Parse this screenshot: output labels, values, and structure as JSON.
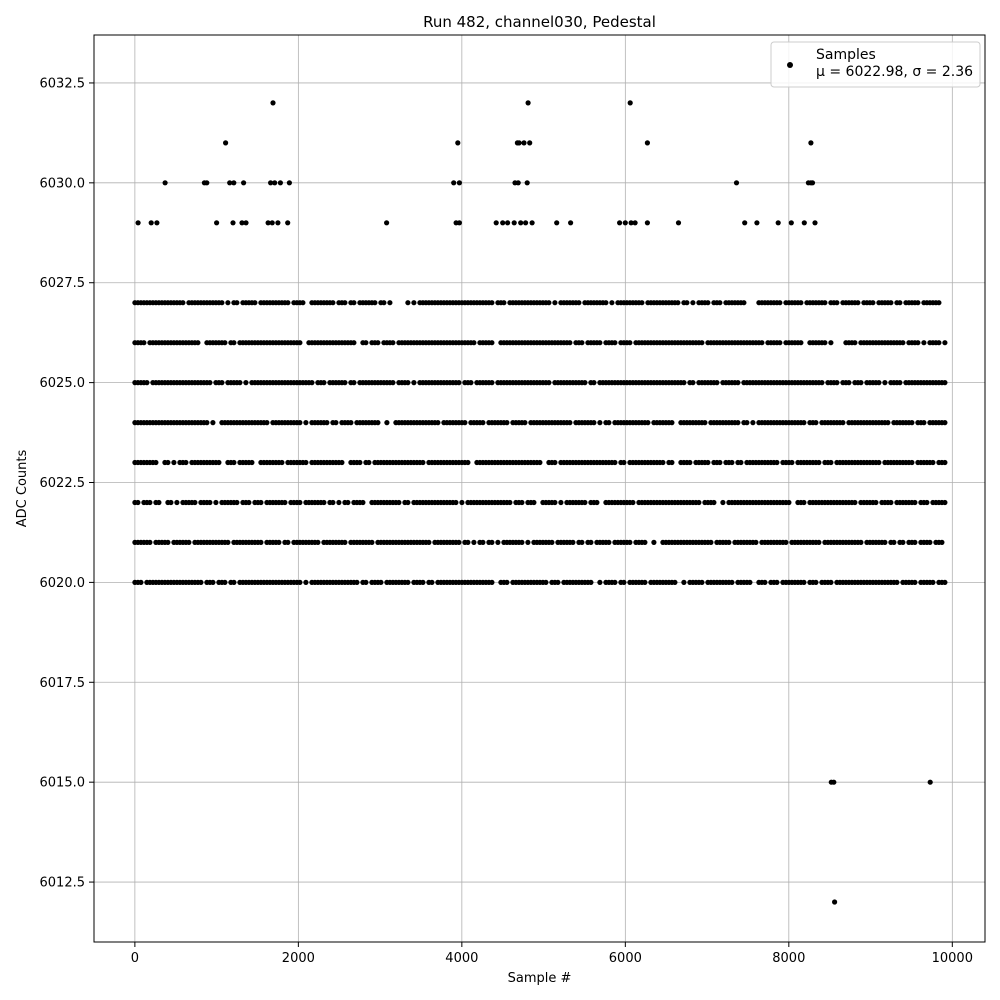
{
  "chart_data": {
    "type": "scatter",
    "title": "Run 482, channel030, Pedestal",
    "xlabel": "Sample #",
    "ylabel": "ADC Counts",
    "xlim": [
      -500,
      10400
    ],
    "ylim": [
      6011.0,
      6033.7
    ],
    "xticks": [
      0,
      2000,
      4000,
      6000,
      8000,
      10000
    ],
    "xtick_labels": [
      "0",
      "2000",
      "4000",
      "6000",
      "8000",
      "10000"
    ],
    "yticks": [
      6012.5,
      6015.0,
      6017.5,
      6020.0,
      6022.5,
      6025.0,
      6027.5,
      6030.0,
      6032.5
    ],
    "ytick_labels": [
      "6012.5",
      "6015.0",
      "6017.5",
      "6020.0",
      "6022.5",
      "6025.0",
      "6027.5",
      "6030.0",
      "6032.5"
    ],
    "grid": true,
    "legend_position": "top-right",
    "series": [
      {
        "name": "Samples",
        "stats_label": "μ = 6022.98, σ = 2.36",
        "color": "#000000",
        "marker": "circle",
        "x_range": [
          0,
          9920
        ],
        "bands": [
          {
            "y": 6027,
            "ranges": [
              [
                0,
                9920
              ]
            ]
          },
          {
            "y": 6026,
            "ranges": [
              [
                0,
                9920
              ]
            ]
          },
          {
            "y": 6025,
            "ranges": [
              [
                0,
                9920
              ]
            ]
          },
          {
            "y": 6024,
            "ranges": [
              [
                0,
                9920
              ]
            ]
          },
          {
            "y": 6023,
            "ranges": [
              [
                0,
                9920
              ]
            ]
          },
          {
            "y": 6022,
            "ranges": [
              [
                0,
                9920
              ]
            ]
          },
          {
            "y": 6021,
            "ranges": [
              [
                0,
                9920
              ]
            ]
          },
          {
            "y": 6020,
            "ranges": [
              [
                0,
                9920
              ]
            ]
          }
        ],
        "points": [
          {
            "x": 1690,
            "y": 6032
          },
          {
            "x": 4810,
            "y": 6032
          },
          {
            "x": 6060,
            "y": 6032
          },
          {
            "x": 1110,
            "y": 6031
          },
          {
            "x": 3950,
            "y": 6031
          },
          {
            "x": 4680,
            "y": 6031
          },
          {
            "x": 4700,
            "y": 6031
          },
          {
            "x": 4760,
            "y": 6031
          },
          {
            "x": 4830,
            "y": 6031
          },
          {
            "x": 6270,
            "y": 6031
          },
          {
            "x": 8270,
            "y": 6031
          },
          {
            "x": 370,
            "y": 6030
          },
          {
            "x": 850,
            "y": 6030
          },
          {
            "x": 880,
            "y": 6030
          },
          {
            "x": 1160,
            "y": 6030
          },
          {
            "x": 1210,
            "y": 6030
          },
          {
            "x": 1330,
            "y": 6030
          },
          {
            "x": 1660,
            "y": 6030
          },
          {
            "x": 1710,
            "y": 6030
          },
          {
            "x": 1780,
            "y": 6030
          },
          {
            "x": 1890,
            "y": 6030
          },
          {
            "x": 3900,
            "y": 6030
          },
          {
            "x": 3970,
            "y": 6030
          },
          {
            "x": 4650,
            "y": 6030
          },
          {
            "x": 4690,
            "y": 6030
          },
          {
            "x": 4800,
            "y": 6030
          },
          {
            "x": 7360,
            "y": 6030
          },
          {
            "x": 8240,
            "y": 6030
          },
          {
            "x": 8270,
            "y": 6030
          },
          {
            "x": 8290,
            "y": 6030
          },
          {
            "x": 40,
            "y": 6029
          },
          {
            "x": 200,
            "y": 6029
          },
          {
            "x": 270,
            "y": 6029
          },
          {
            "x": 1000,
            "y": 6029
          },
          {
            "x": 1200,
            "y": 6029
          },
          {
            "x": 1310,
            "y": 6029
          },
          {
            "x": 1360,
            "y": 6029
          },
          {
            "x": 1630,
            "y": 6029
          },
          {
            "x": 1680,
            "y": 6029
          },
          {
            "x": 1750,
            "y": 6029
          },
          {
            "x": 1870,
            "y": 6029
          },
          {
            "x": 3080,
            "y": 6029
          },
          {
            "x": 3930,
            "y": 6029
          },
          {
            "x": 3970,
            "y": 6029
          },
          {
            "x": 4420,
            "y": 6029
          },
          {
            "x": 4500,
            "y": 6029
          },
          {
            "x": 4560,
            "y": 6029
          },
          {
            "x": 4640,
            "y": 6029
          },
          {
            "x": 4720,
            "y": 6029
          },
          {
            "x": 4780,
            "y": 6029
          },
          {
            "x": 4860,
            "y": 6029
          },
          {
            "x": 5160,
            "y": 6029
          },
          {
            "x": 5330,
            "y": 6029
          },
          {
            "x": 5930,
            "y": 6029
          },
          {
            "x": 6000,
            "y": 6029
          },
          {
            "x": 6070,
            "y": 6029
          },
          {
            "x": 6120,
            "y": 6029
          },
          {
            "x": 6270,
            "y": 6029
          },
          {
            "x": 6650,
            "y": 6029
          },
          {
            "x": 7460,
            "y": 6029
          },
          {
            "x": 7610,
            "y": 6029
          },
          {
            "x": 7870,
            "y": 6029
          },
          {
            "x": 8030,
            "y": 6029
          },
          {
            "x": 8190,
            "y": 6029
          },
          {
            "x": 8320,
            "y": 6029
          },
          {
            "x": 8550,
            "y": 6015
          },
          {
            "x": 8520,
            "y": 6015
          },
          {
            "x": 9730,
            "y": 6015
          },
          {
            "x": 8560,
            "y": 6012
          }
        ]
      }
    ]
  }
}
